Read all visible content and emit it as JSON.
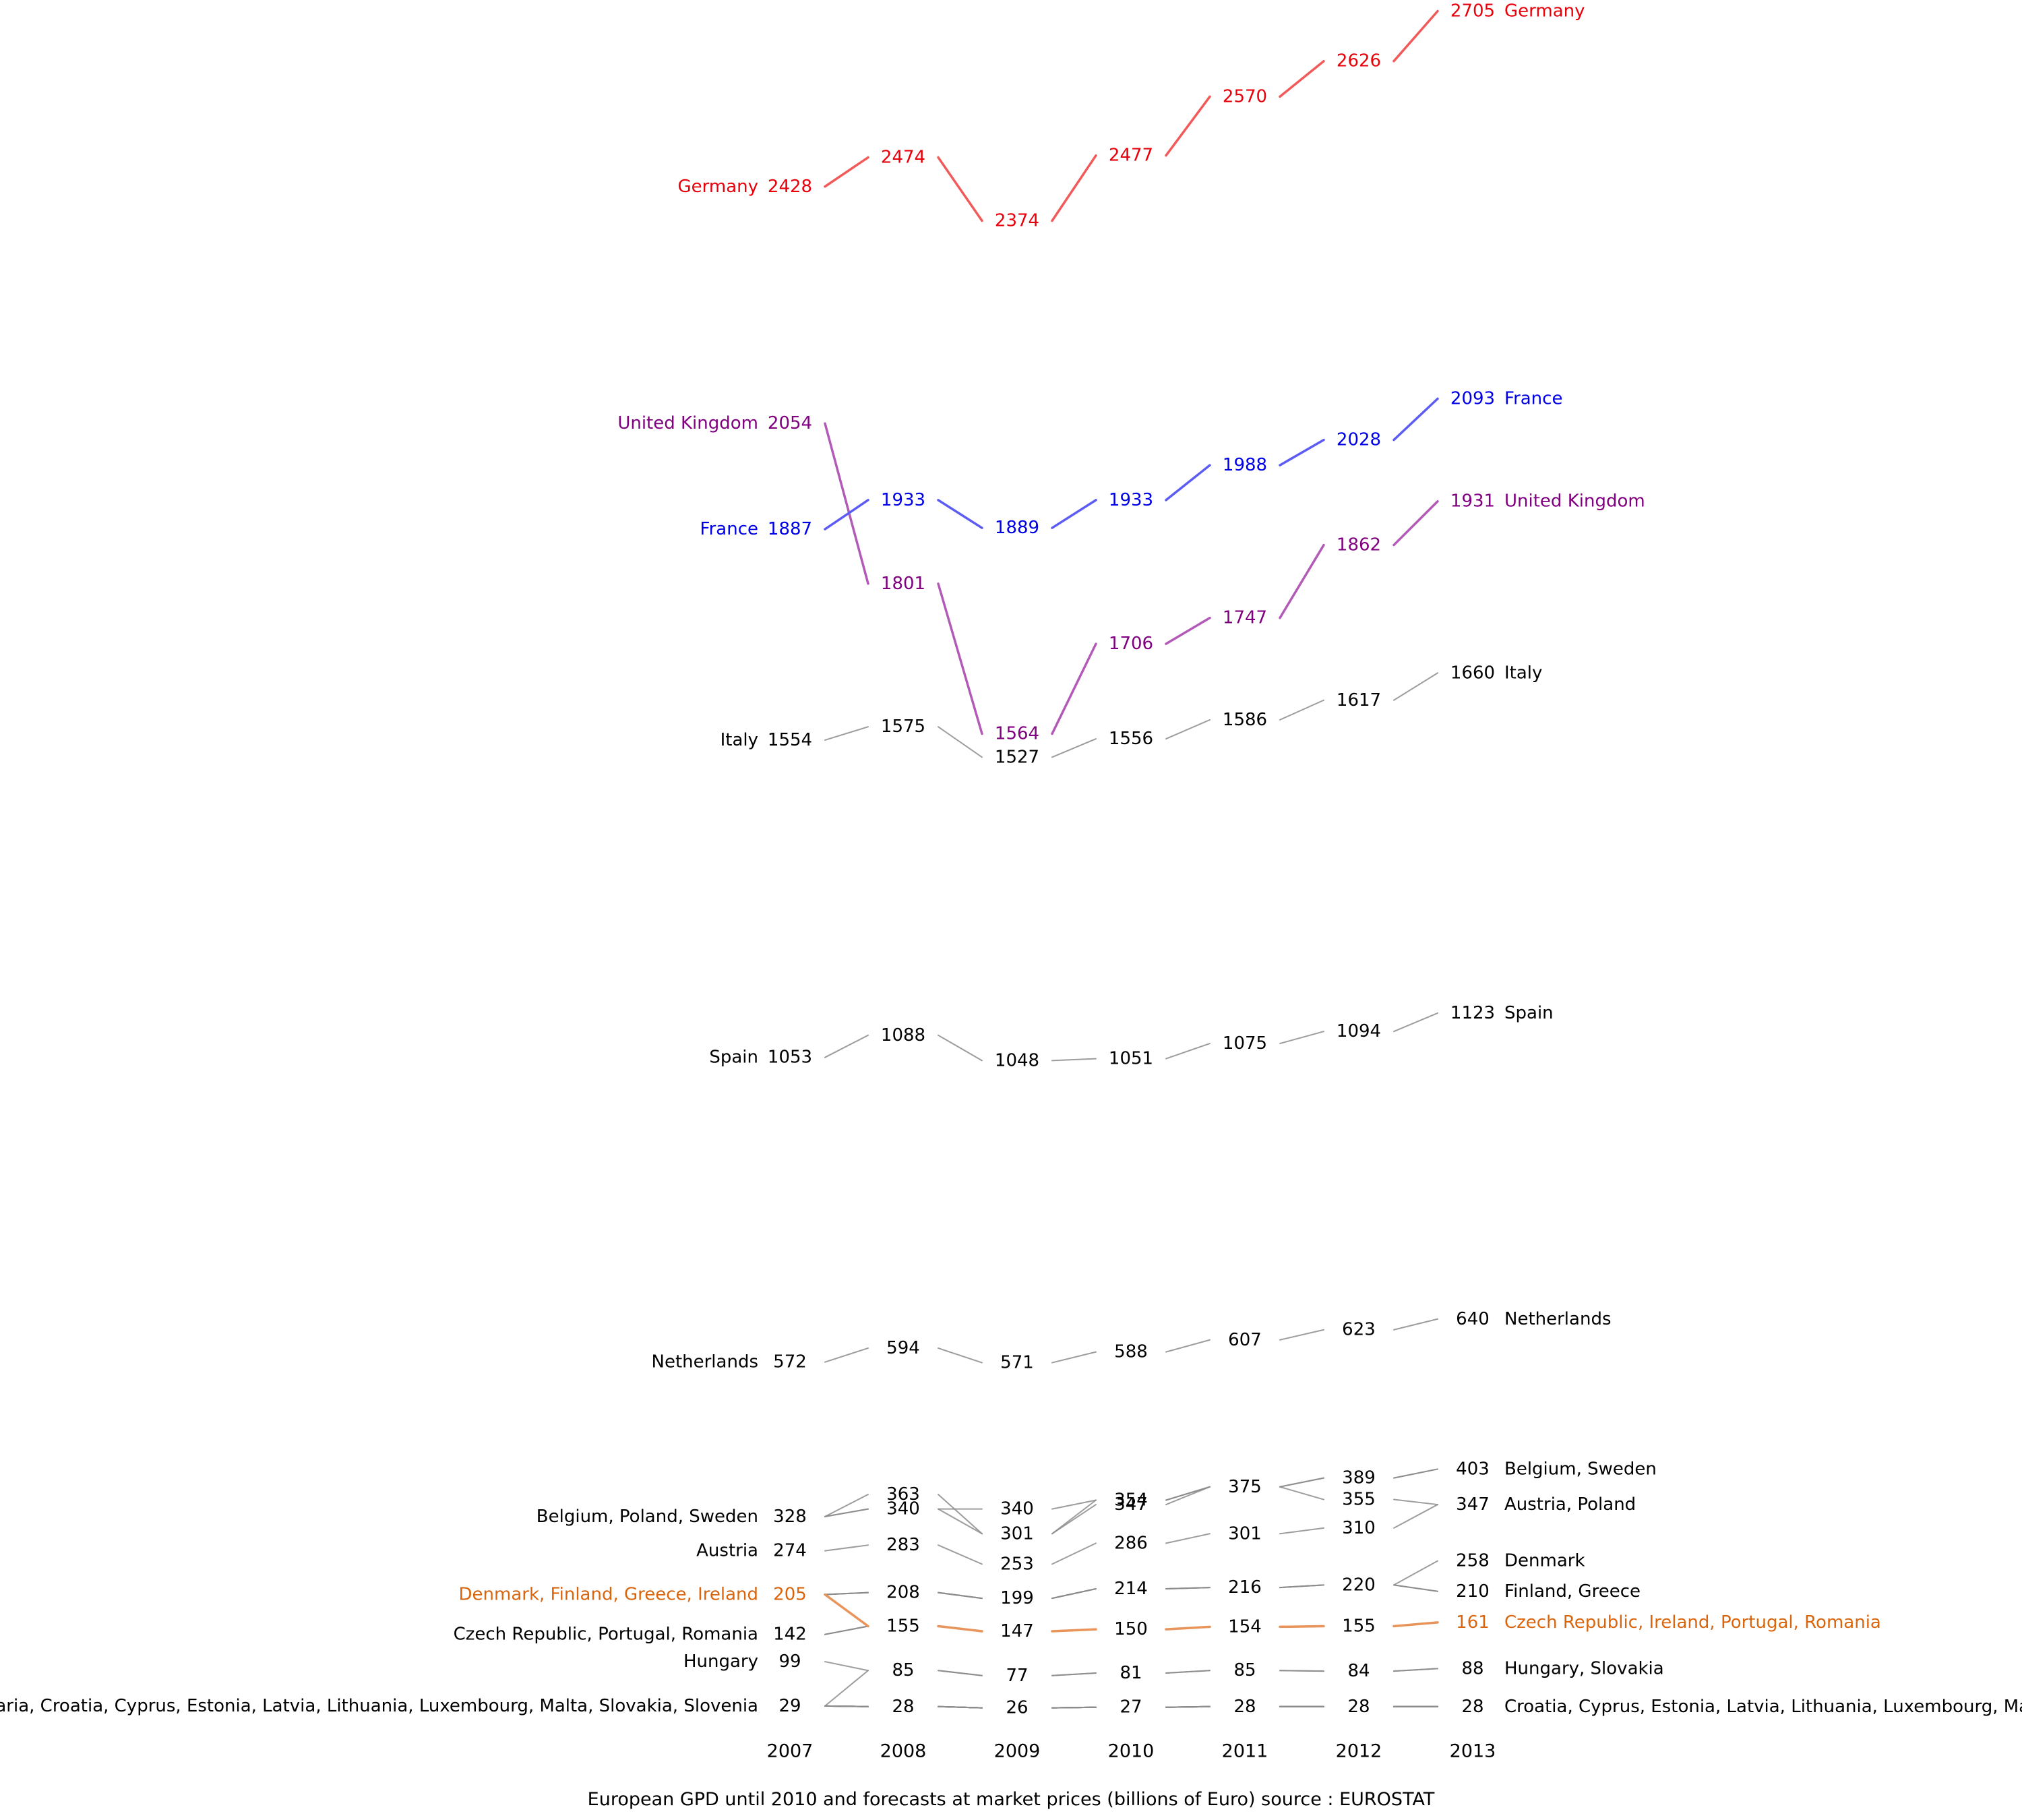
{
  "chart_data": {
    "type": "line",
    "subtype": "slopegraph",
    "title": "European GPD until 2010 and forecasts at market prices (billions of Euro) source : EUROSTAT",
    "xlabel": "",
    "ylabel": "",
    "grid": false,
    "x": [
      "2007",
      "2008",
      "2009",
      "2010",
      "2011",
      "2012",
      "2013"
    ],
    "colors": {
      "germany": "#f25a5a",
      "germany_text": "#e8000b",
      "france": "#5c5cf5",
      "france_text": "#0000e6",
      "uk": "#b35ab8",
      "uk_text": "#800080",
      "highlight": "#e8945a",
      "highlight_text": "#d9660f",
      "other": "#8c8c8c",
      "text": "#000000"
    },
    "series": [
      {
        "name": "Germany",
        "style": "germany",
        "values": [
          2428,
          2474,
          2374,
          2477,
          2570,
          2626,
          2705
        ],
        "labels": [
          true,
          true,
          true,
          true,
          true,
          true,
          true
        ]
      },
      {
        "name": "France",
        "style": "france",
        "values": [
          1887,
          1933,
          1889,
          1933,
          1988,
          2028,
          2093
        ],
        "labels": [
          true,
          true,
          true,
          true,
          true,
          true,
          true
        ]
      },
      {
        "name": "United Kingdom",
        "style": "uk",
        "values": [
          2054,
          1801,
          1564,
          1706,
          1747,
          1862,
          1931
        ],
        "labels": [
          true,
          true,
          true,
          true,
          true,
          true,
          true
        ]
      },
      {
        "name": "Italy",
        "style": "other",
        "values": [
          1554,
          1575,
          1527,
          1556,
          1586,
          1617,
          1660
        ],
        "labels": [
          true,
          true,
          true,
          true,
          true,
          true,
          true
        ]
      },
      {
        "name": "Spain",
        "style": "other",
        "values": [
          1053,
          1088,
          1048,
          1051,
          1075,
          1094,
          1123
        ],
        "labels": [
          true,
          true,
          true,
          true,
          true,
          true,
          true
        ]
      },
      {
        "name": "Netherlands",
        "style": "other",
        "values": [
          572,
          594,
          571,
          588,
          607,
          623,
          640
        ],
        "labels": [
          true,
          true,
          true,
          true,
          true,
          true,
          true
        ]
      },
      {
        "name": "Belgium",
        "style": "other",
        "values": [
          328,
          340,
          340,
          354,
          375,
          389,
          403
        ],
        "labels": [
          true,
          true,
          true,
          true,
          true,
          true,
          true
        ]
      },
      {
        "name": "Sweden",
        "style": "other",
        "values": [
          328,
          340,
          301,
          347,
          375,
          389,
          403
        ],
        "labels": [
          false,
          false,
          false,
          true,
          false,
          false,
          false
        ]
      },
      {
        "name": "Poland",
        "style": "other",
        "values": [
          328,
          363,
          301,
          354,
          375,
          355,
          347
        ],
        "labels": [
          false,
          true,
          true,
          false,
          false,
          true,
          true
        ]
      },
      {
        "name": "Austria",
        "style": "other",
        "values": [
          274,
          283,
          253,
          286,
          301,
          310,
          347
        ],
        "labels": [
          true,
          true,
          true,
          true,
          true,
          true,
          false
        ]
      },
      {
        "name": "Denmark",
        "style": "other",
        "values": [
          205,
          208,
          199,
          214,
          216,
          220,
          258
        ],
        "labels": [
          false,
          true,
          true,
          true,
          true,
          true,
          true
        ]
      },
      {
        "name": "Finland",
        "style": "other",
        "values": [
          205,
          208,
          199,
          214,
          216,
          220,
          210
        ],
        "labels": [
          false,
          false,
          false,
          false,
          false,
          false,
          true
        ]
      },
      {
        "name": "Greece",
        "style": "other",
        "values": [
          205,
          208,
          199,
          214,
          216,
          220,
          210
        ],
        "labels": [
          false,
          false,
          false,
          false,
          false,
          false,
          false
        ]
      },
      {
        "name": "Ireland",
        "style": "highlight",
        "values": [
          205,
          155,
          147,
          150,
          154,
          155,
          161
        ],
        "labels": [
          true,
          false,
          false,
          false,
          false,
          false,
          true
        ]
      },
      {
        "name": "Czech Republic",
        "style": "other",
        "values": [
          142,
          155,
          147,
          150,
          154,
          155,
          161
        ],
        "labels": [
          true,
          true,
          true,
          true,
          true,
          true,
          false
        ]
      },
      {
        "name": "Portugal",
        "style": "other",
        "values": [
          142,
          155,
          147,
          150,
          154,
          155,
          161
        ],
        "labels": [
          false,
          false,
          false,
          false,
          false,
          false,
          false
        ]
      },
      {
        "name": "Romania",
        "style": "other",
        "values": [
          142,
          155,
          147,
          150,
          154,
          155,
          161
        ],
        "labels": [
          false,
          false,
          false,
          false,
          false,
          false,
          false
        ]
      },
      {
        "name": "Hungary",
        "style": "other",
        "values": [
          99,
          85,
          77,
          81,
          85,
          84,
          88
        ],
        "labels": [
          true,
          true,
          true,
          true,
          true,
          true,
          true
        ]
      },
      {
        "name": "Slovakia",
        "style": "other",
        "values": [
          29,
          85,
          77,
          81,
          85,
          84,
          88
        ],
        "labels": [
          false,
          false,
          false,
          false,
          false,
          false,
          false
        ]
      },
      {
        "name": "Bulgaria",
        "style": "other",
        "values": [
          29,
          28,
          26,
          27,
          28,
          28,
          28
        ],
        "labels": [
          true,
          true,
          true,
          true,
          true,
          true,
          true
        ]
      },
      {
        "name": "Croatia",
        "style": "other",
        "values": [
          29,
          28,
          26,
          27,
          28,
          28,
          28
        ],
        "labels": [
          false,
          false,
          false,
          false,
          false,
          false,
          false
        ]
      },
      {
        "name": "Cyprus",
        "style": "other",
        "values": [
          29,
          28,
          26,
          27,
          28,
          28,
          28
        ],
        "labels": [
          false,
          false,
          false,
          false,
          false,
          false,
          false
        ]
      },
      {
        "name": "Estonia",
        "style": "other",
        "values": [
          29,
          28,
          26,
          27,
          28,
          28,
          28
        ],
        "labels": [
          false,
          false,
          false,
          false,
          false,
          false,
          false
        ]
      },
      {
        "name": "Latvia",
        "style": "other",
        "values": [
          29,
          28,
          26,
          27,
          28,
          28,
          28
        ],
        "labels": [
          false,
          false,
          false,
          false,
          false,
          false,
          false
        ]
      },
      {
        "name": "Lithuania",
        "style": "other",
        "values": [
          29,
          28,
          26,
          27,
          28,
          28,
          28
        ],
        "labels": [
          false,
          false,
          false,
          false,
          false,
          false,
          false
        ]
      },
      {
        "name": "Luxembourg",
        "style": "other",
        "values": [
          29,
          28,
          26,
          27,
          28,
          28,
          28
        ],
        "labels": [
          false,
          false,
          false,
          false,
          false,
          false,
          false
        ]
      },
      {
        "name": "Malta",
        "style": "other",
        "values": [
          29,
          28,
          26,
          27,
          28,
          28,
          28
        ],
        "labels": [
          false,
          false,
          false,
          false,
          false,
          false,
          false
        ]
      },
      {
        "name": "Slovenia",
        "style": "other",
        "values": [
          29,
          28,
          26,
          27,
          28,
          28,
          28
        ],
        "labels": [
          false,
          false,
          false,
          false,
          false,
          false,
          false
        ]
      }
    ],
    "left_labels": [
      {
        "text": "Germany",
        "value": 2428,
        "style": "germany"
      },
      {
        "text": "United Kingdom",
        "value": 2054,
        "style": "uk"
      },
      {
        "text": "France",
        "value": 1887,
        "style": "france"
      },
      {
        "text": "Italy",
        "value": 1554,
        "style": "other"
      },
      {
        "text": "Spain",
        "value": 1053,
        "style": "other"
      },
      {
        "text": "Netherlands",
        "value": 572,
        "style": "other"
      },
      {
        "text": "Belgium, Poland, Sweden",
        "value": 328,
        "style": "other"
      },
      {
        "text": "Austria",
        "value": 274,
        "style": "other"
      },
      {
        "text": "Denmark, Finland, Greece, Ireland",
        "value": 205,
        "style": "highlight"
      },
      {
        "text": "Czech Republic, Portugal, Romania",
        "value": 142,
        "style": "other"
      },
      {
        "text": "Hungary",
        "value": 99,
        "style": "other"
      },
      {
        "text": "Bulgaria, Croatia, Cyprus, Estonia, Latvia, Lithuania, Luxembourg, Malta, Slovakia, Slovenia",
        "value": 29,
        "style": "other"
      }
    ],
    "right_labels": [
      {
        "text": "Germany",
        "value": 2705,
        "style": "germany"
      },
      {
        "text": "France",
        "value": 2093,
        "style": "france"
      },
      {
        "text": "United Kingdom",
        "value": 1931,
        "style": "uk"
      },
      {
        "text": "Italy",
        "value": 1660,
        "style": "other"
      },
      {
        "text": "Spain",
        "value": 1123,
        "style": "other"
      },
      {
        "text": "Netherlands",
        "value": 640,
        "style": "other"
      },
      {
        "text": "Belgium, Sweden",
        "value": 403,
        "style": "other"
      },
      {
        "text": "Austria, Poland",
        "value": 347,
        "style": "other"
      },
      {
        "text": "Denmark",
        "value": 258,
        "style": "other"
      },
      {
        "text": "Finland, Greece",
        "value": 210,
        "style": "other"
      },
      {
        "text": "Czech Republic, Ireland, Portugal, Romania",
        "value": 161,
        "style": "highlight"
      },
      {
        "text": "Hungary, Slovakia",
        "value": 88,
        "style": "other"
      },
      {
        "text": "Croatia, Cyprus, Estonia, Latvia, Lithuania, Luxembourg, Malta",
        "value": 28,
        "style": "other"
      }
    ]
  }
}
